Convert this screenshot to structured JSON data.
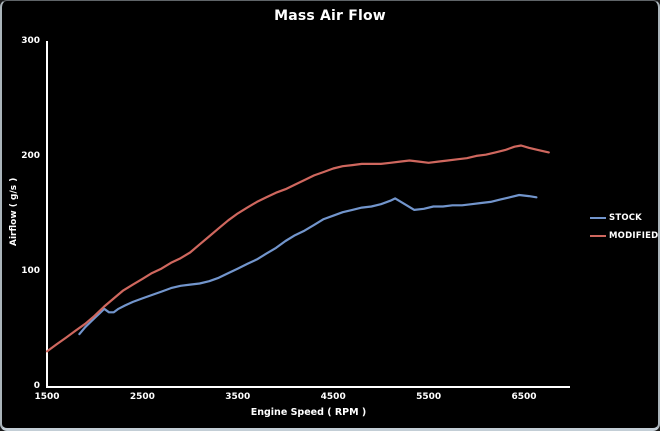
{
  "chart_data": {
    "type": "line",
    "title": "Mass Air Flow",
    "xlabel": "Engine Speed ( RPM )",
    "ylabel": "Airflow ( g/s )",
    "xlim": [
      1500,
      6800
    ],
    "ylim": [
      0,
      300
    ],
    "x_ticks": [
      1500,
      2500,
      3500,
      4500,
      5500,
      6500
    ],
    "y_ticks": [
      0,
      100,
      200,
      300
    ],
    "grid": false,
    "background_color": "#000000",
    "axis_color": "#ffffff",
    "text_color": "#ffffff",
    "legend_position": "right",
    "series": [
      {
        "name": "STOCK",
        "color": "#7295cc",
        "points": [
          [
            1840,
            46
          ],
          [
            1900,
            52
          ],
          [
            1950,
            56
          ],
          [
            2000,
            60
          ],
          [
            2050,
            64
          ],
          [
            2100,
            68
          ],
          [
            2150,
            65
          ],
          [
            2200,
            65
          ],
          [
            2250,
            68
          ],
          [
            2320,
            71
          ],
          [
            2400,
            74
          ],
          [
            2500,
            77
          ],
          [
            2600,
            80
          ],
          [
            2700,
            83
          ],
          [
            2800,
            86
          ],
          [
            2900,
            88
          ],
          [
            3000,
            89
          ],
          [
            3100,
            90
          ],
          [
            3200,
            92
          ],
          [
            3300,
            95
          ],
          [
            3400,
            99
          ],
          [
            3500,
            103
          ],
          [
            3600,
            107
          ],
          [
            3700,
            111
          ],
          [
            3800,
            116
          ],
          [
            3900,
            121
          ],
          [
            4000,
            127
          ],
          [
            4100,
            132
          ],
          [
            4200,
            136
          ],
          [
            4300,
            141
          ],
          [
            4400,
            146
          ],
          [
            4500,
            149
          ],
          [
            4600,
            152
          ],
          [
            4700,
            154
          ],
          [
            4800,
            156
          ],
          [
            4900,
            157
          ],
          [
            5000,
            159
          ],
          [
            5100,
            162
          ],
          [
            5150,
            164
          ],
          [
            5250,
            159
          ],
          [
            5350,
            154
          ],
          [
            5450,
            155
          ],
          [
            5550,
            157
          ],
          [
            5650,
            157
          ],
          [
            5750,
            158
          ],
          [
            5850,
            158
          ],
          [
            5950,
            159
          ],
          [
            6050,
            160
          ],
          [
            6150,
            161
          ],
          [
            6250,
            163
          ],
          [
            6350,
            165
          ],
          [
            6450,
            167
          ],
          [
            6550,
            166
          ],
          [
            6630,
            165
          ]
        ]
      },
      {
        "name": "MODIFIED",
        "color": "#cf675e",
        "points": [
          [
            1500,
            31
          ],
          [
            1600,
            37
          ],
          [
            1700,
            43
          ],
          [
            1800,
            49
          ],
          [
            1900,
            55
          ],
          [
            2000,
            62
          ],
          [
            2100,
            70
          ],
          [
            2200,
            77
          ],
          [
            2300,
            84
          ],
          [
            2400,
            89
          ],
          [
            2500,
            94
          ],
          [
            2600,
            99
          ],
          [
            2700,
            103
          ],
          [
            2800,
            108
          ],
          [
            2900,
            112
          ],
          [
            3000,
            117
          ],
          [
            3100,
            124
          ],
          [
            3200,
            131
          ],
          [
            3300,
            138
          ],
          [
            3400,
            145
          ],
          [
            3500,
            151
          ],
          [
            3600,
            156
          ],
          [
            3700,
            161
          ],
          [
            3800,
            165
          ],
          [
            3900,
            169
          ],
          [
            4000,
            172
          ],
          [
            4100,
            176
          ],
          [
            4200,
            180
          ],
          [
            4300,
            184
          ],
          [
            4400,
            187
          ],
          [
            4500,
            190
          ],
          [
            4600,
            192
          ],
          [
            4700,
            193
          ],
          [
            4800,
            194
          ],
          [
            4900,
            194
          ],
          [
            5000,
            194
          ],
          [
            5100,
            195
          ],
          [
            5200,
            196
          ],
          [
            5300,
            197
          ],
          [
            5400,
            196
          ],
          [
            5500,
            195
          ],
          [
            5600,
            196
          ],
          [
            5700,
            197
          ],
          [
            5800,
            198
          ],
          [
            5900,
            199
          ],
          [
            6000,
            201
          ],
          [
            6100,
            202
          ],
          [
            6200,
            204
          ],
          [
            6300,
            206
          ],
          [
            6400,
            209
          ],
          [
            6470,
            210
          ],
          [
            6550,
            208
          ],
          [
            6650,
            206
          ],
          [
            6760,
            204
          ]
        ]
      }
    ]
  }
}
